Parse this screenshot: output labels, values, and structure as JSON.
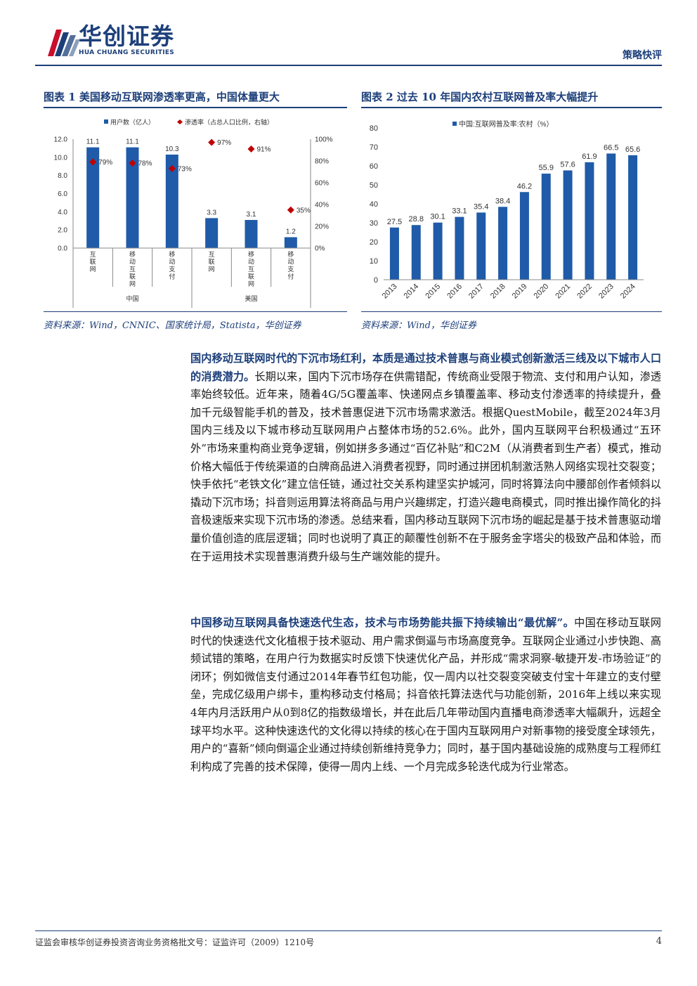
{
  "header": {
    "brand_cn": "华创证券",
    "brand_en": "HUA CHUANG SECURITIES",
    "report_type": "策略快评",
    "logo_colors": [
      "#c8102e",
      "#1c3f7a"
    ]
  },
  "figure1": {
    "title": "图表 1   美国移动互联网渗透率更高，中国体量更大",
    "source": "资料来源：Wind，CNNIC、国家统计局，Statista，华创证券",
    "chart_data": {
      "type": "bar",
      "categories": [
        "互联网",
        "移动互联网",
        "移动支付",
        "互联网",
        "移动互联网",
        "移动支付"
      ],
      "groups": [
        {
          "name": "中国",
          "from": 0,
          "to": 2
        },
        {
          "name": "美国",
          "from": 3,
          "to": 5
        }
      ],
      "series": [
        {
          "name": "用户数（亿人）",
          "kind": "bar",
          "axis": "left",
          "values": [
            11.1,
            11.1,
            10.3,
            3.3,
            3.1,
            1.2
          ],
          "labels": [
            "11.1",
            "11.1",
            "10.3",
            "3.3",
            "3.1",
            "1.2"
          ],
          "color": "#1f5ba8"
        },
        {
          "name": "渗透率（占总人口比例，右轴）",
          "kind": "marker",
          "axis": "right",
          "values": [
            79,
            78,
            73,
            97,
            91,
            35
          ],
          "labels": [
            "79%",
            "78%",
            "73%",
            "97%",
            "91%",
            "35%"
          ],
          "color": "#c00000"
        }
      ],
      "y_left": {
        "min": 0,
        "max": 12,
        "ticks": [
          "0.0",
          "2.0",
          "4.0",
          "6.0",
          "8.0",
          "10.0",
          "12.0"
        ]
      },
      "y_right": {
        "min": 0,
        "max": 100,
        "ticks": [
          "0%",
          "20%",
          "40%",
          "60%",
          "80%",
          "100%"
        ]
      },
      "legend": "top"
    }
  },
  "figure2": {
    "title": "图表 2   过去 10 年国内农村互联网普及率大幅提升",
    "source": "资料来源：Wind，华创证券",
    "chart_data": {
      "type": "bar",
      "categories": [
        "2013",
        "2014",
        "2015",
        "2016",
        "2017",
        "2018",
        "2019",
        "2020",
        "2021",
        "2022",
        "2023",
        "2024"
      ],
      "series": [
        {
          "name": "中国:互联网普及率:农村（%）",
          "values": [
            27.5,
            28.8,
            30.1,
            33.1,
            35.4,
            38.4,
            46.2,
            55.9,
            57.6,
            61.9,
            66.5,
            65.6
          ],
          "labels": [
            "27.5",
            "28.8",
            "30.1",
            "33.1",
            "35.4",
            "38.4",
            "46.2",
            "55.9",
            "57.6",
            "61.9",
            "66.5",
            "65.6"
          ],
          "color": "#1f5ba8"
        }
      ],
      "y": {
        "min": 0,
        "max": 80,
        "ticks": [
          "0",
          "10",
          "20",
          "30",
          "40",
          "50",
          "60",
          "70",
          "80"
        ]
      },
      "legend": "top"
    }
  },
  "paragraphs": [
    {
      "lead": "国内移动互联网时代的下沉市场红利，本质是通过技术普惠与商业模式创新激活三线及以下城市人口的消费潜力。",
      "body": "长期以来，国内下沉市场存在供需错配，传统商业受限于物流、支付和用户认知，渗透率始终较低。近年来，随着4G/5G覆盖率、快递网点乡镇覆盖率、移动支付渗透率的持续提升，叠加千元级智能手机的普及，技术普惠促进下沉市场需求激活。根据QuestMobile，截至2024年3月国内三线及以下城市移动互联网用户占整体市场的52.6%。此外，国内互联网平台积极通过“五环外”市场来重构商业竞争逻辑，例如拼多多通过“百亿补贴”和C2M（从消费者到生产者）模式，推动价格大幅低于传统渠道的白牌商品进入消费者视野，同时通过拼团机制激活熟人网络实现社交裂变；快手依托“老铁文化”建立信任链，通过社交关系构建坚实护城河，同时将算法向中腰部创作者倾斜以撬动下沉市场；抖音则运用算法将商品与用户兴趣绑定，打造兴趣电商模式，同时推出操作简化的抖音极速版来实现下沉市场的渗透。总结来看，国内移动互联网下沉市场的崛起是基于技术普惠驱动增量价值创造的底层逻辑；同时也说明了真正的颠覆性创新不在于服务金字塔尖的极致产品和体验，而在于运用技术实现普惠消费升级与生产端效能的提升。"
    },
    {
      "lead": "中国移动互联网具备快速迭代生态，技术与市场势能共振下持续输出“最优解”。",
      "body": "中国在移动互联网时代的快速迭代文化植根于技术驱动、用户需求倒逼与市场高度竞争。互联网企业通过小步快跑、高频试错的策略，在用户行为数据实时反馈下快速优化产品，并形成“需求洞察-敏捷开发-市场验证”的闭环；例如微信支付通过2014年春节红包功能，仅一周内以社交裂变突破支付宝十年建立的支付壁垒，完成亿级用户绑卡，重构移动支付格局；抖音依托算法迭代与功能创新，2016年上线以来实现4年内月活跃用户从0到8亿的指数级增长，并在此后几年带动国内直播电商渗透率大幅飙升，远超全球平均水平。这种快速迭代的文化得以持续的核心在于国内互联网用户对新事物的接受度全球领先，用户的“喜新”倾向倒逼企业通过持续创新维持竞争力；同时，基于国内基础设施的成熟度与工程师红利构成了完善的技术保障，使得一周内上线、一个月完成多轮迭代成为行业常态。"
    }
  ],
  "footer": {
    "text": "证监会审核华创证券投资咨询业务资格批文号：证监许可（2009）1210号",
    "page_number": "4"
  }
}
